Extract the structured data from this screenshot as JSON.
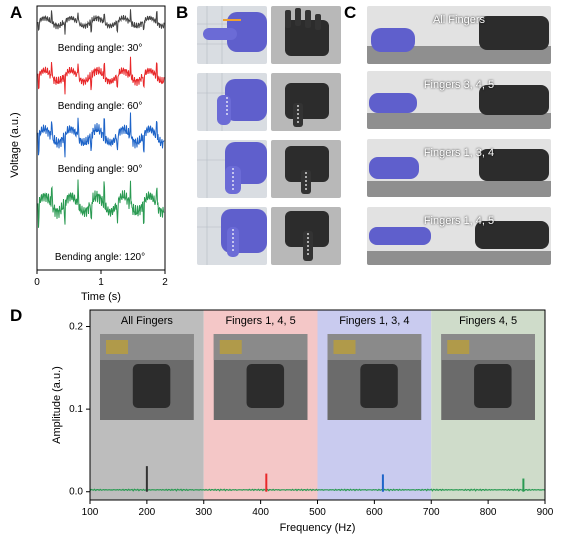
{
  "panel_labels": {
    "a": "A",
    "b": "B",
    "c": "C",
    "d": "D"
  },
  "panel_a": {
    "ylabel": "Voltage (a.u.)",
    "xlabel": "Time (s)",
    "xticks": [
      "0",
      "1",
      "2"
    ],
    "traces": [
      {
        "label": "",
        "color": "#444444"
      },
      {
        "label": "Bending angle: 30°",
        "color": "#e8282a"
      },
      {
        "label": "Bending angle: 60°",
        "color": "#1e64c8"
      },
      {
        "label": "Bending angle: 90°",
        "color": "#2a9a52"
      },
      {
        "label": "Bending angle: 120°",
        "color": ""
      }
    ]
  },
  "panel_c": {
    "captions": [
      "All  Fingers",
      "Fingers 3, 4, 5",
      "Fingers 1, 3, 4",
      "Fingers 1, 4, 5"
    ]
  },
  "chart_data": {
    "type": "bar",
    "xlabel": "Frequency (Hz)",
    "ylabel": "Amplitude (a.u.)",
    "xlim": [
      100,
      900
    ],
    "ylim": [
      -0.01,
      0.22
    ],
    "xticks": [
      "100",
      "200",
      "300",
      "400",
      "500",
      "600",
      "700",
      "800",
      "900"
    ],
    "yticks": [
      "0.0",
      "0.1",
      "0.2"
    ],
    "regions": [
      {
        "label": "All  Fingers",
        "from": 100,
        "to": 300,
        "color": "#bdbdbd"
      },
      {
        "label": "Fingers 1, 4, 5",
        "from": 300,
        "to": 500,
        "color": "#f4c7c7"
      },
      {
        "label": "Fingers 1, 3, 4",
        "from": 500,
        "to": 700,
        "color": "#c9cbef"
      },
      {
        "label": "Fingers 4, 5",
        "from": 700,
        "to": 900,
        "color": "#cfdcca"
      }
    ],
    "peaks": [
      {
        "x": 200,
        "y": 0.031,
        "color": "#333333"
      },
      {
        "x": 410,
        "y": 0.022,
        "color": "#e8282a"
      },
      {
        "x": 615,
        "y": 0.021,
        "color": "#1e64c8"
      },
      {
        "x": 862,
        "y": 0.016,
        "color": "#2a9a52"
      }
    ],
    "baseline_color": "#2a9a52"
  }
}
